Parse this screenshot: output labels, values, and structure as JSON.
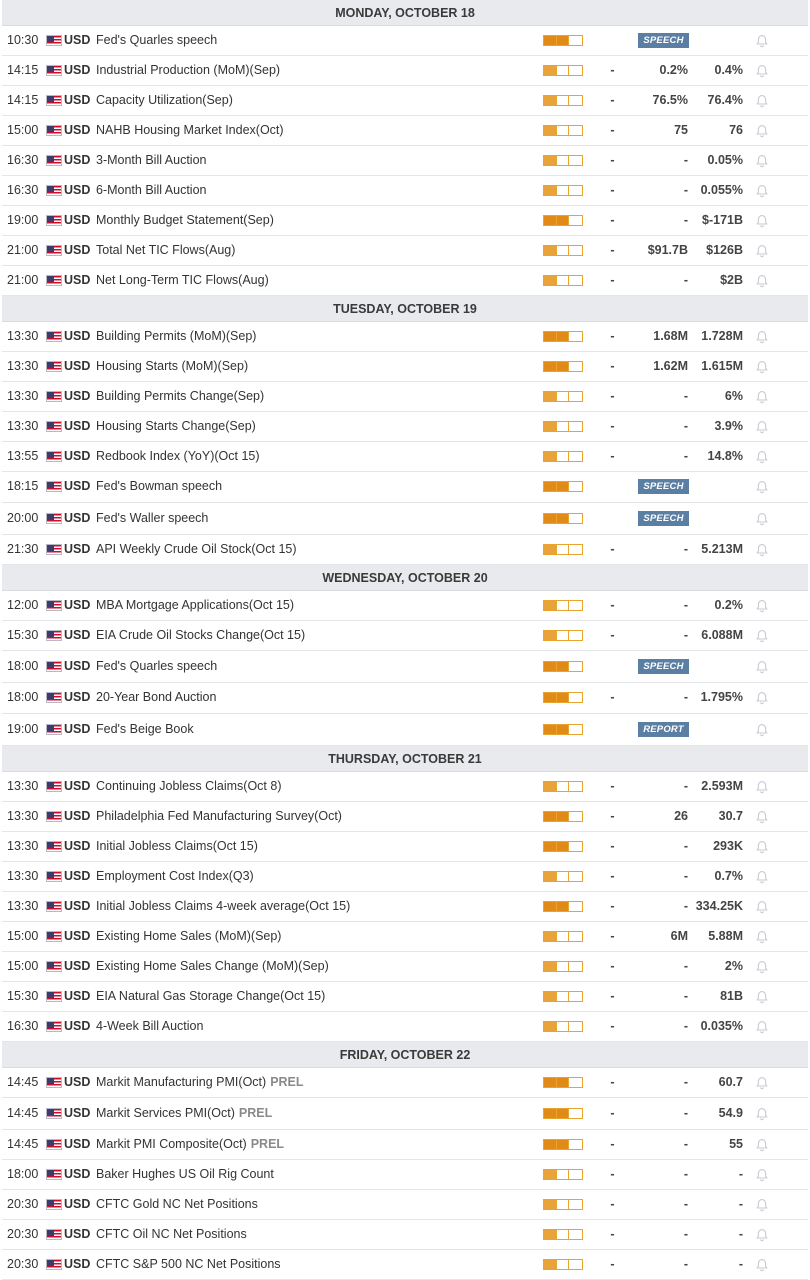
{
  "calendar": {
    "days": [
      {
        "label": "MONDAY, OCTOBER 18",
        "events": [
          {
            "time": "10:30",
            "currency": "USD",
            "name": "Fed's Quarles speech",
            "importance": "high",
            "badge": "SPEECH"
          },
          {
            "time": "14:15",
            "currency": "USD",
            "name": "Industrial Production (MoM)(Sep)",
            "importance": "low",
            "actual": "-",
            "consensus": "0.2%",
            "previous": "0.4%"
          },
          {
            "time": "14:15",
            "currency": "USD",
            "name": "Capacity Utilization(Sep)",
            "importance": "low",
            "actual": "-",
            "consensus": "76.5%",
            "previous": "76.4%"
          },
          {
            "time": "15:00",
            "currency": "USD",
            "name": "NAHB Housing Market Index(Oct)",
            "importance": "low",
            "actual": "-",
            "consensus": "75",
            "previous": "76"
          },
          {
            "time": "16:30",
            "currency": "USD",
            "name": "3-Month Bill Auction",
            "importance": "low",
            "actual": "-",
            "consensus": "-",
            "previous": "0.05%"
          },
          {
            "time": "16:30",
            "currency": "USD",
            "name": "6-Month Bill Auction",
            "importance": "low",
            "actual": "-",
            "consensus": "-",
            "previous": "0.055%"
          },
          {
            "time": "19:00",
            "currency": "USD",
            "name": "Monthly Budget Statement(Sep)",
            "importance": "high",
            "actual": "-",
            "consensus": "-",
            "previous": "$-171B"
          },
          {
            "time": "21:00",
            "currency": "USD",
            "name": "Total Net TIC Flows(Aug)",
            "importance": "low",
            "actual": "-",
            "consensus": "$91.7B",
            "previous": "$126B"
          },
          {
            "time": "21:00",
            "currency": "USD",
            "name": "Net Long-Term TIC Flows(Aug)",
            "importance": "low",
            "actual": "-",
            "consensus": "-",
            "previous": "$2B"
          }
        ]
      },
      {
        "label": "TUESDAY, OCTOBER 19",
        "events": [
          {
            "time": "13:30",
            "currency": "USD",
            "name": "Building Permits (MoM)(Sep)",
            "importance": "high",
            "actual": "-",
            "consensus": "1.68M",
            "previous": "1.728M"
          },
          {
            "time": "13:30",
            "currency": "USD",
            "name": "Housing Starts (MoM)(Sep)",
            "importance": "high",
            "actual": "-",
            "consensus": "1.62M",
            "previous": "1.615M"
          },
          {
            "time": "13:30",
            "currency": "USD",
            "name": "Building Permits Change(Sep)",
            "importance": "low",
            "actual": "-",
            "consensus": "-",
            "previous": "6%"
          },
          {
            "time": "13:30",
            "currency": "USD",
            "name": "Housing Starts Change(Sep)",
            "importance": "low",
            "actual": "-",
            "consensus": "-",
            "previous": "3.9%"
          },
          {
            "time": "13:55",
            "currency": "USD",
            "name": "Redbook Index (YoY)(Oct 15)",
            "importance": "low",
            "actual": "-",
            "consensus": "-",
            "previous": "14.8%"
          },
          {
            "time": "18:15",
            "currency": "USD",
            "name": "Fed's Bowman speech",
            "importance": "high",
            "badge": "SPEECH"
          },
          {
            "time": "20:00",
            "currency": "USD",
            "name": "Fed's Waller speech",
            "importance": "high",
            "badge": "SPEECH"
          },
          {
            "time": "21:30",
            "currency": "USD",
            "name": "API Weekly Crude Oil Stock(Oct 15)",
            "importance": "low",
            "actual": "-",
            "consensus": "-",
            "previous": "5.213M"
          }
        ]
      },
      {
        "label": "WEDNESDAY, OCTOBER 20",
        "events": [
          {
            "time": "12:00",
            "currency": "USD",
            "name": "MBA Mortgage Applications(Oct 15)",
            "importance": "low",
            "actual": "-",
            "consensus": "-",
            "previous": "0.2%"
          },
          {
            "time": "15:30",
            "currency": "USD",
            "name": "EIA Crude Oil Stocks Change(Oct 15)",
            "importance": "low",
            "actual": "-",
            "consensus": "-",
            "previous": "6.088M"
          },
          {
            "time": "18:00",
            "currency": "USD",
            "name": "Fed's Quarles speech",
            "importance": "high",
            "badge": "SPEECH"
          },
          {
            "time": "18:00",
            "currency": "USD",
            "name": "20-Year Bond Auction",
            "importance": "high",
            "actual": "-",
            "consensus": "-",
            "previous": "1.795%"
          },
          {
            "time": "19:00",
            "currency": "USD",
            "name": "Fed's Beige Book",
            "importance": "high",
            "badge": "REPORT"
          }
        ]
      },
      {
        "label": "THURSDAY, OCTOBER 21",
        "events": [
          {
            "time": "13:30",
            "currency": "USD",
            "name": "Continuing Jobless Claims(Oct 8)",
            "importance": "low",
            "actual": "-",
            "consensus": "-",
            "previous": "2.593M"
          },
          {
            "time": "13:30",
            "currency": "USD",
            "name": "Philadelphia Fed Manufacturing Survey(Oct)",
            "importance": "high",
            "actual": "-",
            "consensus": "26",
            "previous": "30.7"
          },
          {
            "time": "13:30",
            "currency": "USD",
            "name": "Initial Jobless Claims(Oct 15)",
            "importance": "high",
            "actual": "-",
            "consensus": "-",
            "previous": "293K"
          },
          {
            "time": "13:30",
            "currency": "USD",
            "name": "Employment Cost Index(Q3)",
            "importance": "low",
            "actual": "-",
            "consensus": "-",
            "previous": "0.7%"
          },
          {
            "time": "13:30",
            "currency": "USD",
            "name": "Initial Jobless Claims 4-week average(Oct 15)",
            "importance": "high",
            "actual": "-",
            "consensus": "-",
            "previous": "334.25K"
          },
          {
            "time": "15:00",
            "currency": "USD",
            "name": "Existing Home Sales (MoM)(Sep)",
            "importance": "low",
            "actual": "-",
            "consensus": "6M",
            "previous": "5.88M"
          },
          {
            "time": "15:00",
            "currency": "USD",
            "name": "Existing Home Sales Change (MoM)(Sep)",
            "importance": "low",
            "actual": "-",
            "consensus": "-",
            "previous": "2%"
          },
          {
            "time": "15:30",
            "currency": "USD",
            "name": "EIA Natural Gas Storage Change(Oct 15)",
            "importance": "low",
            "actual": "-",
            "consensus": "-",
            "previous": "81B"
          },
          {
            "time": "16:30",
            "currency": "USD",
            "name": "4-Week Bill Auction",
            "importance": "low",
            "actual": "-",
            "consensus": "-",
            "previous": "0.035%"
          }
        ]
      },
      {
        "label": "FRIDAY, OCTOBER 22",
        "events": [
          {
            "time": "14:45",
            "currency": "USD",
            "name": "Markit Manufacturing PMI(Oct)",
            "tag": "PREL",
            "importance": "high",
            "actual": "-",
            "consensus": "-",
            "previous": "60.7"
          },
          {
            "time": "14:45",
            "currency": "USD",
            "name": "Markit Services PMI(Oct)",
            "tag": "PREL",
            "importance": "high",
            "actual": "-",
            "consensus": "-",
            "previous": "54.9"
          },
          {
            "time": "14:45",
            "currency": "USD",
            "name": "Markit PMI Composite(Oct)",
            "tag": "PREL",
            "importance": "high",
            "actual": "-",
            "consensus": "-",
            "previous": "55"
          },
          {
            "time": "18:00",
            "currency": "USD",
            "name": "Baker Hughes US Oil Rig Count",
            "importance": "low",
            "actual": "-",
            "consensus": "-",
            "previous": "-"
          },
          {
            "time": "20:30",
            "currency": "USD",
            "name": "CFTC Gold NC Net Positions",
            "importance": "low",
            "actual": "-",
            "consensus": "-",
            "previous": "-"
          },
          {
            "time": "20:30",
            "currency": "USD",
            "name": "CFTC Oil NC Net Positions",
            "importance": "low",
            "actual": "-",
            "consensus": "-",
            "previous": "-"
          },
          {
            "time": "20:30",
            "currency": "USD",
            "name": "CFTC S&P 500 NC Net Positions",
            "importance": "low",
            "actual": "-",
            "consensus": "-",
            "previous": "-"
          }
        ]
      }
    ]
  },
  "colors": {
    "importance_high": "#e28a18",
    "importance_low": "#e8a33a",
    "badge_bg": "#5b7ea3",
    "header_bg": "#e9eaee"
  },
  "icons": {
    "flag": "us-flag-icon",
    "alert": "bell-icon"
  }
}
